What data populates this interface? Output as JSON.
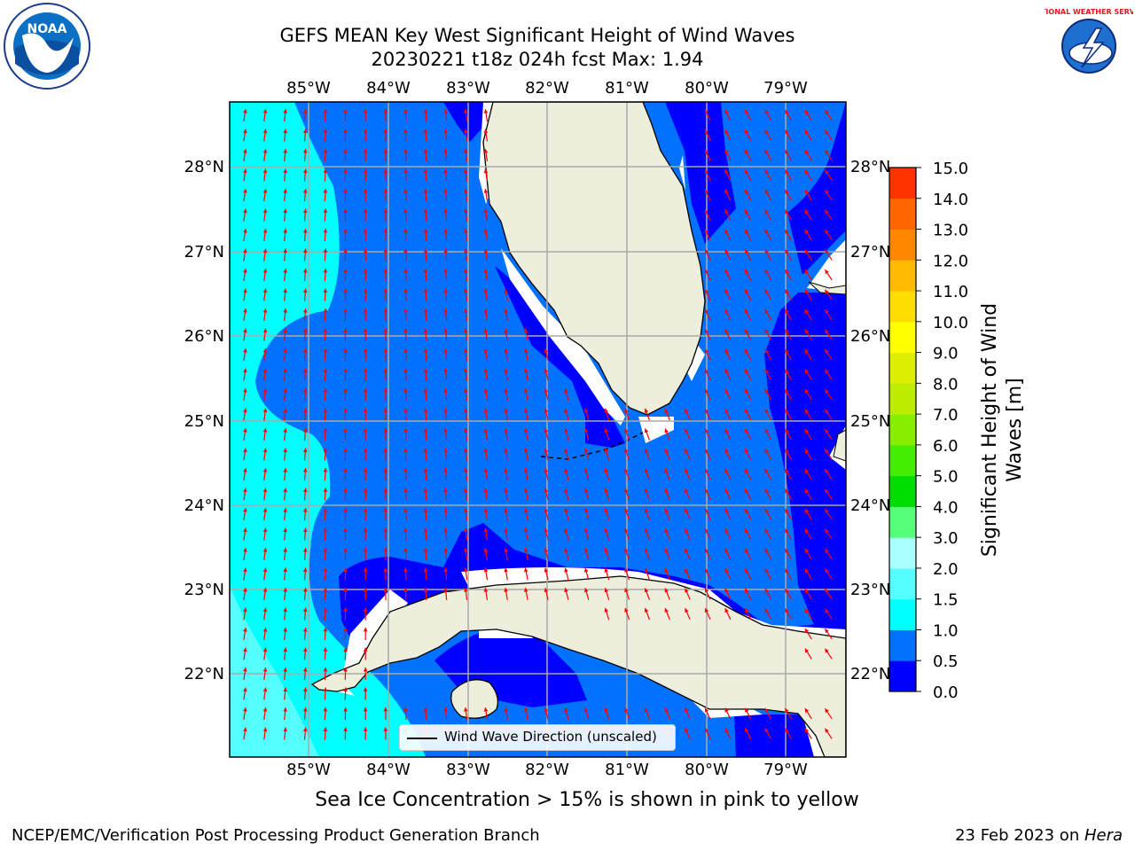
{
  "header": {
    "title_line1": "GEFS MEAN Key West Significant Height of Wind Waves",
    "title_line2": "20230221 t18z 024h fcst   Max: 1.94"
  },
  "map": {
    "lon_labels": [
      "85°W",
      "84°W",
      "83°W",
      "82°W",
      "81°W",
      "80°W",
      "79°W"
    ],
    "lat_labels": [
      "28°N",
      "27°N",
      "26°N",
      "25°N",
      "24°N",
      "23°N",
      "22°N"
    ],
    "legend_label": "Wind Wave Direction (unscaled)",
    "arrow_color": "#ff0000",
    "land_color": "#eeeedd"
  },
  "colorbar": {
    "label": "Significant Height of Wind Waves [m]",
    "ticks": [
      "0.0",
      "0.5",
      "1.0",
      "1.5",
      "2.0",
      "3.0",
      "4.0",
      "5.0",
      "6.0",
      "7.0",
      "8.0",
      "9.0",
      "10.0",
      "11.0",
      "12.0",
      "13.0",
      "14.0",
      "15.0"
    ],
    "colors": [
      "#0000ff",
      "#0072ff",
      "#00ffff",
      "#55ffff",
      "#aaffff",
      "#55ff77",
      "#00dd00",
      "#44ee00",
      "#88ee00",
      "#bbee00",
      "#ddee00",
      "#ffff00",
      "#ffdd00",
      "#ffbb00",
      "#ff8800",
      "#ff6600",
      "#ff3300",
      "#ff0000"
    ]
  },
  "logos": {
    "noaa_text": "NOAA",
    "nws_text": "NATIONAL WEATHER SERVICE"
  },
  "bottom_note": "Sea Ice Concentration > 15% is shown in pink to yellow",
  "footer": {
    "left": "NCEP/EMC/Verification Post Processing Product Generation Branch",
    "right_date": "23 Feb 2023 on ",
    "right_host": "Hera"
  }
}
